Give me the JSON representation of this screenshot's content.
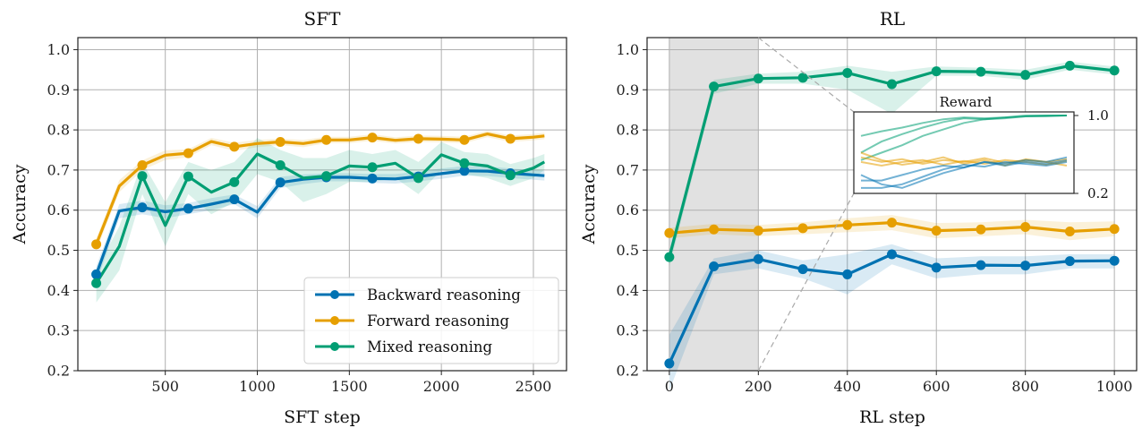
{
  "colors": {
    "backward": "#0072b2",
    "forward": "#e69f00",
    "mixed": "#009e73",
    "grid": "#b0b0b0",
    "shade": "#d9d9d9"
  },
  "legend": {
    "placement": "lower-right",
    "items": [
      {
        "label": "Backward reasoning",
        "color": "#0072b2"
      },
      {
        "label": "Forward reasoning",
        "color": "#e69f00"
      },
      {
        "label": "Mixed reasoning",
        "color": "#009e73"
      }
    ]
  },
  "chart_data": [
    {
      "type": "line",
      "title": "SFT",
      "xlabel": "SFT step",
      "ylabel": "Accuracy",
      "xlim": [
        25,
        2680
      ],
      "ylim": [
        0.2,
        1.03
      ],
      "xticks": [
        500,
        1000,
        1500,
        2000,
        2500
      ],
      "xtick_labels": [
        "500",
        "1000",
        "1500",
        "2000",
        "2500"
      ],
      "yticks": [
        0.2,
        0.3,
        0.4,
        0.5,
        0.6,
        0.7,
        0.8,
        0.9,
        1.0
      ],
      "ytick_labels": [
        "0.2",
        "0.3",
        "0.4",
        "0.5",
        "0.6",
        "0.7",
        "0.8",
        "0.9",
        "1.0"
      ],
      "grid": true,
      "series": [
        {
          "name": "Backward reasoning",
          "color": "#0072b2",
          "x": [
            125,
            250,
            375,
            500,
            625,
            750,
            875,
            1000,
            1125,
            1250,
            1375,
            1500,
            1625,
            1750,
            1875,
            2000,
            2125,
            2250,
            2375,
            2500,
            2560
          ],
          "y": [
            0.44,
            0.598,
            0.607,
            0.596,
            0.604,
            0.615,
            0.627,
            0.595,
            0.669,
            0.677,
            0.682,
            0.682,
            0.679,
            0.678,
            0.684,
            0.691,
            0.698,
            0.697,
            0.692,
            0.688,
            0.686
          ],
          "y_low": [
            0.42,
            0.58,
            0.59,
            0.58,
            0.59,
            0.6,
            0.615,
            0.58,
            0.655,
            0.665,
            0.672,
            0.672,
            0.668,
            0.666,
            0.672,
            0.678,
            0.686,
            0.685,
            0.68,
            0.676,
            0.674
          ],
          "y_high": [
            0.46,
            0.615,
            0.624,
            0.612,
            0.618,
            0.63,
            0.639,
            0.61,
            0.683,
            0.689,
            0.692,
            0.692,
            0.69,
            0.69,
            0.696,
            0.704,
            0.71,
            0.709,
            0.704,
            0.7,
            0.698
          ],
          "marker_idx": [
            0,
            2,
            4,
            6,
            8,
            10,
            12,
            14,
            16,
            18
          ]
        },
        {
          "name": "Forward reasoning",
          "color": "#e69f00",
          "x": [
            125,
            250,
            375,
            500,
            625,
            750,
            875,
            1000,
            1125,
            1250,
            1375,
            1500,
            1625,
            1750,
            1875,
            2000,
            2125,
            2250,
            2375,
            2500,
            2560
          ],
          "y": [
            0.515,
            0.66,
            0.712,
            0.737,
            0.742,
            0.771,
            0.758,
            0.766,
            0.77,
            0.766,
            0.775,
            0.775,
            0.781,
            0.774,
            0.778,
            0.777,
            0.775,
            0.79,
            0.778,
            0.782,
            0.785
          ],
          "y_low": [
            0.5,
            0.645,
            0.7,
            0.725,
            0.732,
            0.762,
            0.748,
            0.757,
            0.762,
            0.757,
            0.767,
            0.767,
            0.773,
            0.766,
            0.77,
            0.769,
            0.767,
            0.782,
            0.77,
            0.774,
            0.777
          ],
          "y_high": [
            0.53,
            0.675,
            0.724,
            0.749,
            0.752,
            0.78,
            0.768,
            0.775,
            0.778,
            0.775,
            0.783,
            0.783,
            0.789,
            0.782,
            0.786,
            0.785,
            0.783,
            0.798,
            0.786,
            0.79,
            0.793
          ],
          "marker_idx": [
            0,
            2,
            4,
            6,
            8,
            10,
            12,
            14,
            16,
            18
          ]
        },
        {
          "name": "Mixed reasoning",
          "color": "#009e73",
          "x": [
            125,
            250,
            375,
            500,
            625,
            750,
            875,
            1000,
            1125,
            1250,
            1375,
            1500,
            1625,
            1750,
            1875,
            2000,
            2125,
            2250,
            2375,
            2500,
            2560
          ],
          "y": [
            0.418,
            0.51,
            0.685,
            0.562,
            0.684,
            0.645,
            0.67,
            0.74,
            0.712,
            0.68,
            0.685,
            0.71,
            0.707,
            0.717,
            0.68,
            0.738,
            0.717,
            0.71,
            0.687,
            0.705,
            0.72
          ],
          "y_low": [
            0.37,
            0.45,
            0.64,
            0.51,
            0.64,
            0.59,
            0.62,
            0.69,
            0.67,
            0.62,
            0.64,
            0.67,
            0.67,
            0.68,
            0.64,
            0.7,
            0.69,
            0.68,
            0.66,
            0.68,
            0.7
          ],
          "y_high": [
            0.45,
            0.56,
            0.72,
            0.62,
            0.72,
            0.7,
            0.72,
            0.78,
            0.75,
            0.73,
            0.73,
            0.75,
            0.74,
            0.75,
            0.72,
            0.77,
            0.745,
            0.74,
            0.715,
            0.73,
            0.74
          ],
          "marker_idx": [
            0,
            2,
            4,
            6,
            8,
            10,
            12,
            14,
            16,
            18
          ]
        }
      ]
    },
    {
      "type": "line",
      "title": "RL",
      "xlabel": "RL step",
      "ylabel": "Accuracy",
      "xlim": [
        -50,
        1050
      ],
      "ylim": [
        0.2,
        1.03
      ],
      "xticks": [
        0,
        200,
        400,
        600,
        800,
        1000
      ],
      "xtick_labels": [
        "0",
        "200",
        "400",
        "600",
        "800",
        "1000"
      ],
      "yticks": [
        0.2,
        0.3,
        0.4,
        0.5,
        0.6,
        0.7,
        0.8,
        0.9,
        1.0
      ],
      "ytick_labels": [
        "0.2",
        "0.3",
        "0.4",
        "0.5",
        "0.6",
        "0.7",
        "0.8",
        "0.9",
        "1.0"
      ],
      "grid": true,
      "shaded_x_range": [
        0,
        200
      ],
      "series": [
        {
          "name": "Backward reasoning",
          "color": "#0072b2",
          "x": [
            0,
            100,
            200,
            300,
            400,
            500,
            600,
            700,
            800,
            900,
            1000
          ],
          "y": [
            0.218,
            0.46,
            0.478,
            0.453,
            0.44,
            0.49,
            0.457,
            0.463,
            0.462,
            0.473,
            0.474
          ],
          "y_low": [
            0.15,
            0.44,
            0.455,
            0.43,
            0.39,
            0.465,
            0.43,
            0.44,
            0.44,
            0.455,
            0.455
          ],
          "y_high": [
            0.29,
            0.48,
            0.5,
            0.475,
            0.49,
            0.515,
            0.48,
            0.485,
            0.485,
            0.49,
            0.49
          ]
        },
        {
          "name": "Forward reasoning",
          "color": "#e69f00",
          "x": [
            0,
            100,
            200,
            300,
            400,
            500,
            600,
            700,
            800,
            900,
            1000
          ],
          "y": [
            0.543,
            0.552,
            0.549,
            0.555,
            0.563,
            0.569,
            0.549,
            0.552,
            0.558,
            0.547,
            0.553
          ],
          "y_low": [
            0.53,
            0.54,
            0.535,
            0.54,
            0.545,
            0.55,
            0.53,
            0.535,
            0.54,
            0.525,
            0.535
          ],
          "y_high": [
            0.556,
            0.566,
            0.563,
            0.57,
            0.58,
            0.588,
            0.568,
            0.57,
            0.576,
            0.57,
            0.572
          ]
        },
        {
          "name": "Mixed reasoning",
          "color": "#009e73",
          "x": [
            0,
            100,
            200,
            300,
            400,
            500,
            600,
            700,
            800,
            900,
            1000
          ],
          "y": [
            0.483,
            0.908,
            0.928,
            0.93,
            0.942,
            0.914,
            0.946,
            0.945,
            0.937,
            0.96,
            0.948
          ],
          "y_low": [
            0.46,
            0.89,
            0.915,
            0.915,
            0.9,
            0.84,
            0.935,
            0.935,
            0.925,
            0.95,
            0.938
          ],
          "y_high": [
            0.5,
            0.925,
            0.94,
            0.945,
            0.96,
            0.945,
            0.958,
            0.955,
            0.95,
            0.97,
            0.958
          ]
        }
      ],
      "inset": {
        "title": "Reward",
        "ytick_labels": [
          "1.0",
          "0.2"
        ],
        "ylim": [
          0.2,
          1.0
        ],
        "x_range": [
          0,
          200
        ],
        "curves": [
          {
            "color": "#009e73",
            "x": [
              0,
              20,
              40,
              60,
              80,
              100,
              120,
              140,
              160,
              180,
              200
            ],
            "y": [
              0.78,
              0.83,
              0.87,
              0.92,
              0.96,
              0.98,
              0.97,
              0.98,
              1.0,
              1.0,
              1.0
            ]
          },
          {
            "color": "#009e73",
            "x": [
              0,
              20,
              40,
              60,
              80,
              100,
              120,
              140,
              160,
              180,
              200
            ],
            "y": [
              0.6,
              0.72,
              0.8,
              0.87,
              0.93,
              0.97,
              0.96,
              0.98,
              0.99,
              0.99,
              1.0
            ]
          },
          {
            "color": "#009e73",
            "x": [
              0,
              20,
              40,
              60,
              80,
              100,
              120,
              140,
              160,
              180,
              200
            ],
            "y": [
              0.52,
              0.6,
              0.68,
              0.78,
              0.85,
              0.92,
              0.96,
              0.97,
              0.99,
              1.0,
              1.0
            ]
          },
          {
            "color": "#e69f00",
            "x": [
              0,
              20,
              40,
              60,
              80,
              100,
              120,
              140,
              160,
              180,
              200
            ],
            "y": [
              0.55,
              0.5,
              0.53,
              0.48,
              0.52,
              0.5,
              0.54,
              0.49,
              0.52,
              0.5,
              0.53
            ]
          },
          {
            "color": "#e69f00",
            "x": [
              0,
              20,
              40,
              60,
              80,
              100,
              120,
              140,
              160,
              180,
              200
            ],
            "y": [
              0.5,
              0.46,
              0.5,
              0.52,
              0.47,
              0.51,
              0.48,
              0.52,
              0.5,
              0.47,
              0.51
            ]
          },
          {
            "color": "#e69f00",
            "x": [
              0,
              20,
              40,
              60,
              80,
              100,
              120,
              140,
              160,
              180,
              200
            ],
            "y": [
              0.6,
              0.52,
              0.47,
              0.5,
              0.55,
              0.48,
              0.52,
              0.46,
              0.53,
              0.5,
              0.46
            ]
          },
          {
            "color": "#0072b2",
            "x": [
              0,
              20,
              40,
              60,
              80,
              100,
              120,
              140,
              160,
              180,
              200
            ],
            "y": [
              0.3,
              0.3,
              0.36,
              0.42,
              0.46,
              0.44,
              0.5,
              0.46,
              0.5,
              0.48,
              0.52
            ]
          },
          {
            "color": "#0072b2",
            "x": [
              0,
              20,
              40,
              60,
              80,
              100,
              120,
              140,
              160,
              180,
              200
            ],
            "y": [
              0.22,
              0.22,
              0.26,
              0.34,
              0.42,
              0.47,
              0.45,
              0.5,
              0.48,
              0.46,
              0.5
            ]
          },
          {
            "color": "#0072b2",
            "x": [
              0,
              20,
              40,
              60,
              80,
              100,
              120,
              140,
              160,
              180,
              200
            ],
            "y": [
              0.36,
              0.26,
              0.22,
              0.3,
              0.38,
              0.44,
              0.5,
              0.48,
              0.52,
              0.5,
              0.55
            ]
          }
        ]
      }
    }
  ]
}
